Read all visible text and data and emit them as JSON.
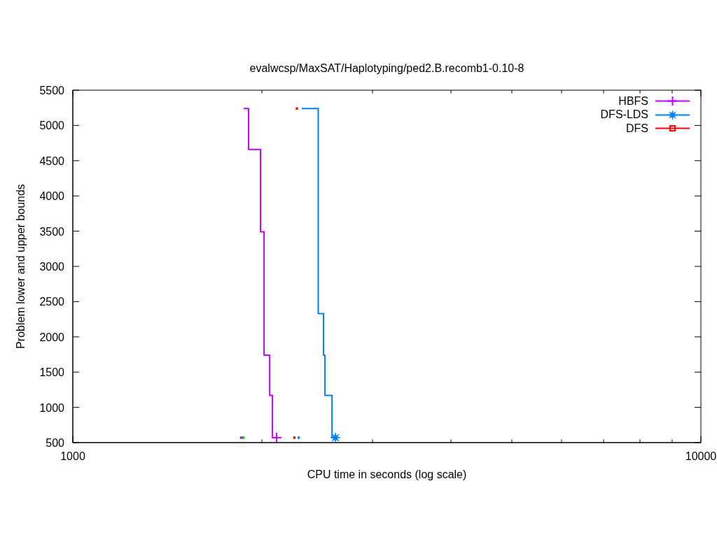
{
  "chart_data": {
    "type": "step",
    "title": "evalwcsp/MaxSAT/Haplotyping/ped2.B.recomb1-0.10-8",
    "xlabel": "CPU time in seconds (log scale)",
    "ylabel": "Problem lower and upper bounds",
    "series": [
      {
        "color": "#c000ff",
        "x": [
          1871,
          1905,
          1990,
          2016,
          2058,
          2079,
          2111
        ],
        "values": [
          5240,
          4660,
          3490,
          1740,
          1170,
          570,
          570
        ]
      },
      {
        "color": "#0080ff",
        "x": [
          2315,
          2459,
          2507,
          2520,
          2586,
          2619
        ],
        "values": [
          5240,
          2330,
          1740,
          1170,
          570,
          570
        ]
      },
      {
        "name": "HBFS",
        "type": "scatter",
        "color": "#c000ff",
        "marker": "cross",
        "x": [
          2111
        ],
        "values": [
          570
        ]
      },
      {
        "name": "DFS-LDS",
        "type": "scatter",
        "color": "#0080ff",
        "marker": "star",
        "x": [
          2619
        ],
        "values": [
          570
        ]
      },
      {
        "name": "DFS",
        "type": "scatter",
        "color": "#ff0000",
        "marker": "square",
        "x": [
          2274
        ],
        "values": [
          5240
        ]
      },
      {
        "type": "scatter",
        "color": "#c000ff",
        "marker": "square",
        "x": [
          1854
        ],
        "values": [
          570
        ]
      },
      {
        "type": "scatter",
        "color": "#00c000",
        "marker": "square",
        "x": [
          1869
        ],
        "values": [
          570
        ]
      },
      {
        "type": "scatter",
        "color": "#ff0000",
        "marker": "square",
        "x": [
          2253
        ],
        "values": [
          570
        ]
      },
      {
        "type": "scatter",
        "color": "#0080ff",
        "marker": "square",
        "x": [
          2289
        ],
        "values": [
          570
        ]
      }
    ],
    "xlim": [
      1000,
      10000
    ],
    "xticks": [
      1000,
      {
        "value": 2000,
        "label": null
      },
      {
        "value": 3000,
        "label": null
      },
      {
        "value": 4000,
        "label": null
      },
      {
        "value": 5000,
        "label": null
      },
      {
        "value": 6000,
        "label": null
      },
      {
        "value": 7000,
        "label": null
      },
      {
        "value": 8000,
        "label": null
      },
      {
        "value": 9000,
        "label": null
      },
      10000
    ],
    "ylim": [
      500,
      5500
    ],
    "yticks": [
      500,
      1000,
      1500,
      2000,
      2500,
      3000,
      3500,
      4000,
      4500,
      5000,
      5500
    ],
    "log": "x",
    "legend": "top right"
  }
}
